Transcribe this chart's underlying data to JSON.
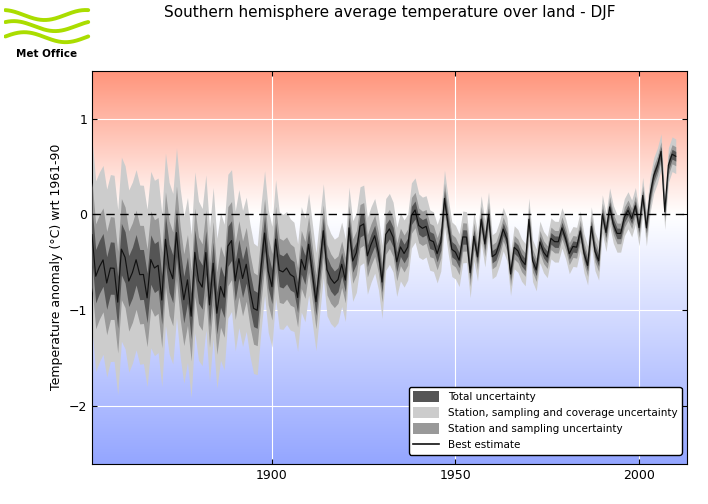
{
  "title": "Southern hemisphere average temperature over land - DJF",
  "ylabel": "Temperature anomaly (°C) wrt 1961-90",
  "xlim": [
    1851,
    2013
  ],
  "ylim": [
    -2.6,
    1.5
  ],
  "yticks": [
    -2.0,
    -1.0,
    0.0,
    1.0
  ],
  "xticks": [
    1900,
    1950,
    2000
  ],
  "dashed_y": 0.0,
  "total_uncertainty_color": "#555555",
  "station_sampling_coverage_color": "#cccccc",
  "station_sampling_color": "#999999",
  "best_estimate_color": "#111111",
  "grid_color": "#ffffff",
  "legend_labels": [
    "Total uncertainty",
    "Station, sampling and coverage uncertainty",
    "Station and sampling uncertainty",
    "Best estimate"
  ],
  "logo_text": "Met Office",
  "wave_color": "#aadd00"
}
